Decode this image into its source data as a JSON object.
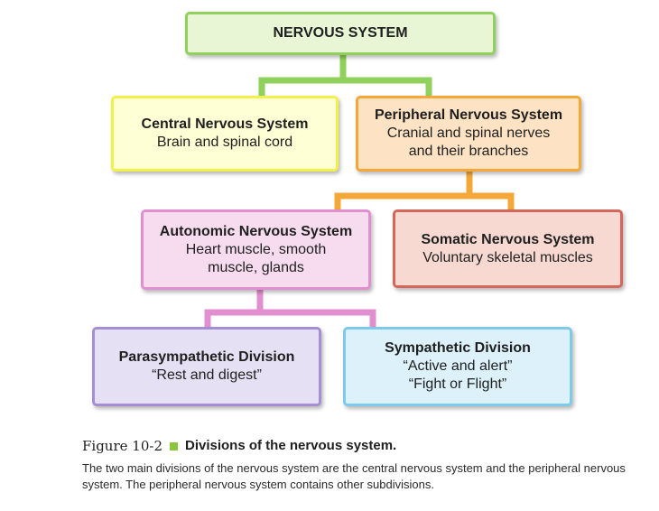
{
  "diagram": {
    "root": {
      "title": "NERVOUS SYSTEM"
    },
    "cns": {
      "title": "Central Nervous System",
      "desc": [
        "Brain and spinal cord"
      ]
    },
    "pns": {
      "title": "Peripheral Nervous System",
      "desc": [
        "Cranial and spinal nerves",
        "and their branches"
      ]
    },
    "ans": {
      "title": "Autonomic Nervous System",
      "desc": [
        "Heart muscle, smooth",
        "muscle, glands"
      ]
    },
    "sns": {
      "title": "Somatic Nervous System",
      "desc": [
        "Voluntary skeletal muscles"
      ]
    },
    "para": {
      "title": "Parasympathetic Division",
      "desc": [
        "“Rest and digest”"
      ]
    },
    "symp": {
      "title": "Sympathetic Division",
      "desc": [
        "“Active and alert”",
        "“Fight or Flight”"
      ]
    }
  },
  "colors": {
    "root_connector": "#8fd15a",
    "pns_connector": "#f4a83a",
    "ans_connector": "#e28fd0",
    "caption_square": "#8cc63f"
  },
  "caption": {
    "figure_label": "Figure 10-2",
    "title": "Divisions of the nervous system.",
    "body": "The two main divisions of the nervous system are the central nervous system and the peripheral nervous system. The peripheral nervous system contains other subdivisions."
  }
}
